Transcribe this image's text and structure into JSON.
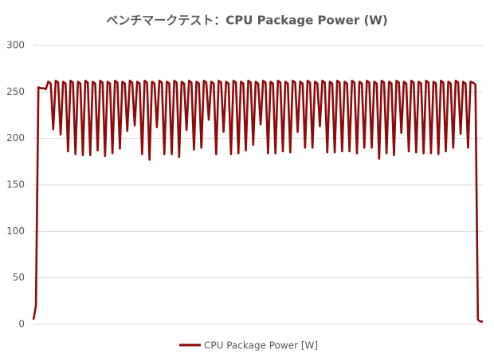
{
  "chart_data": {
    "type": "line",
    "title": "ベンチマークテスト：CPU Package Power (W)",
    "series": [
      {
        "name": "CPU Package Power [W]",
        "color": "#8B0A0A",
        "values": [
          5,
          20,
          255,
          254,
          254,
          253,
          261,
          259,
          210,
          262,
          260,
          204,
          261,
          259,
          186,
          262,
          260,
          183,
          261,
          259,
          182,
          262,
          260,
          182,
          261,
          259,
          187,
          262,
          260,
          181,
          261,
          259,
          184,
          262,
          260,
          189,
          261,
          259,
          208,
          262,
          260,
          214,
          261,
          259,
          183,
          262,
          260,
          177,
          261,
          259,
          212,
          262,
          260,
          183,
          261,
          259,
          183,
          262,
          260,
          180,
          261,
          259,
          209,
          262,
          260,
          188,
          261,
          259,
          190,
          262,
          260,
          220,
          261,
          259,
          183,
          262,
          260,
          207,
          261,
          259,
          183,
          262,
          260,
          184,
          261,
          259,
          187,
          262,
          260,
          193,
          261,
          259,
          215,
          262,
          260,
          184,
          261,
          259,
          184,
          262,
          260,
          186,
          261,
          259,
          185,
          262,
          260,
          207,
          261,
          259,
          190,
          262,
          260,
          190,
          261,
          259,
          213,
          262,
          260,
          185,
          261,
          259,
          185,
          262,
          260,
          186,
          261,
          259,
          186,
          262,
          260,
          184,
          261,
          259,
          190,
          262,
          260,
          190,
          261,
          259,
          178,
          262,
          260,
          184,
          261,
          259,
          182,
          262,
          260,
          206,
          261,
          259,
          186,
          262,
          260,
          185,
          261,
          259,
          184,
          262,
          260,
          184,
          261,
          259,
          183,
          262,
          260,
          186,
          261,
          259,
          190,
          262,
          260,
          205,
          261,
          259,
          190,
          261,
          260,
          258,
          5,
          3,
          3
        ]
      }
    ],
    "ylim": [
      0,
      300
    ],
    "yticks": [
      0,
      50,
      100,
      150,
      200,
      250,
      300
    ],
    "grid": true,
    "legend": "bottom"
  }
}
